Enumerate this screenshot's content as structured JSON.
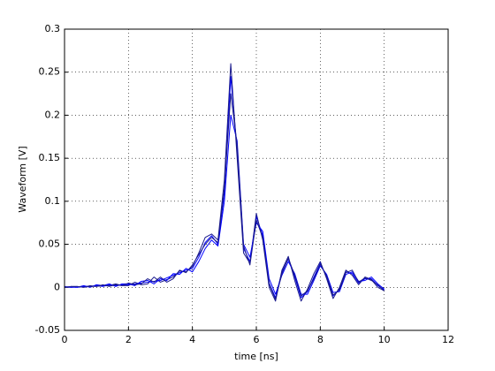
{
  "chart_data": {
    "type": "line",
    "x_label": "time [ns]",
    "y_label": "Waveform [V]",
    "x": [
      0,
      0.2,
      0.4,
      0.6,
      0.8,
      1,
      1.2,
      1.4,
      1.6,
      1.8,
      2,
      2.2,
      2.4,
      2.6,
      2.8,
      3,
      3.2,
      3.4,
      3.6,
      3.8,
      4,
      4.2,
      4.4,
      4.6,
      4.8,
      5,
      5.2,
      5.4,
      5.6,
      5.8,
      6,
      6.2,
      6.4,
      6.6,
      6.8,
      7,
      7.2,
      7.4,
      7.6,
      7.8,
      8,
      8.2,
      8.4,
      8.6,
      8.8,
      9,
      9.2,
      9.4,
      9.6,
      9.8,
      10
    ],
    "series": [
      {
        "color": "#0000ff",
        "values": [
          0,
          0.001,
          0,
          0.001,
          0.001,
          0.002,
          0.001,
          0.003,
          0.002,
          0.003,
          0.003,
          0.004,
          0.005,
          0.006,
          0.007,
          0.008,
          0.011,
          0.014,
          0.017,
          0.02,
          0.022,
          0.035,
          0.052,
          0.06,
          0.05,
          0.11,
          0.245,
          0.16,
          0.045,
          0.03,
          0.082,
          0.06,
          0.005,
          -0.012,
          0.018,
          0.033,
          0.012,
          -0.012,
          -0.005,
          0.012,
          0.028,
          0.012,
          -0.01,
          -0.002,
          0.018,
          0.016,
          0.005,
          0.01,
          0.01,
          0.002,
          -0.003
        ]
      },
      {
        "color": "#1a1a8c",
        "values": [
          0,
          0,
          0.001,
          0,
          0.002,
          0.001,
          0.002,
          0.002,
          0.004,
          0.002,
          0.002,
          0.006,
          0.003,
          0.004,
          0.012,
          0.006,
          0.009,
          0.012,
          0.019,
          0.018,
          0.024,
          0.04,
          0.058,
          0.062,
          0.055,
          0.125,
          0.26,
          0.15,
          0.04,
          0.028,
          0.086,
          0.055,
          0,
          -0.016,
          0.02,
          0.036,
          0.008,
          -0.016,
          -0.002,
          0.016,
          0.03,
          0.01,
          -0.013,
          0,
          0.02,
          0.014,
          0.003,
          0.012,
          0.009,
          0,
          -0.004
        ]
      },
      {
        "color": "#0000ff",
        "values": [
          0.001,
          0,
          0,
          0.002,
          0,
          0.003,
          0.002,
          0.004,
          0.001,
          0.004,
          0.004,
          0.002,
          0.007,
          0.008,
          0.004,
          0.01,
          0.008,
          0.016,
          0.015,
          0.022,
          0.018,
          0.03,
          0.045,
          0.055,
          0.048,
          0.1,
          0.2,
          0.17,
          0.05,
          0.035,
          0.075,
          0.065,
          0.01,
          -0.008,
          0.014,
          0.03,
          0.016,
          -0.008,
          -0.008,
          0.008,
          0.025,
          0.015,
          -0.006,
          -0.005,
          0.015,
          0.018,
          0.007,
          0.008,
          0.012,
          0.004,
          -0.002
        ]
      },
      {
        "color": "#1a1a8c",
        "values": [
          0,
          0.001,
          0.001,
          0,
          0.001,
          0.001,
          0.003,
          0.001,
          0.003,
          0.002,
          0.005,
          0.003,
          0.004,
          0.01,
          0.006,
          0.012,
          0.006,
          0.01,
          0.02,
          0.017,
          0.026,
          0.038,
          0.05,
          0.058,
          0.052,
          0.115,
          0.225,
          0.165,
          0.048,
          0.026,
          0.078,
          0.058,
          0.004,
          -0.014,
          0.016,
          0.034,
          0.014,
          -0.01,
          -0.004,
          0.01,
          0.027,
          0.013,
          -0.009,
          -0.003,
          0.017,
          0.02,
          0.006,
          0.011,
          0.008,
          0.003,
          -0.004
        ]
      }
    ],
    "xlim": [
      0,
      12
    ],
    "xticks": [
      0,
      2,
      4,
      6,
      8,
      10,
      12
    ],
    "ylim": [
      -0.05,
      0.3
    ],
    "yticks": [
      -0.05,
      0,
      0.05,
      0.1,
      0.15,
      0.2,
      0.25,
      0.3
    ],
    "grid": true
  }
}
